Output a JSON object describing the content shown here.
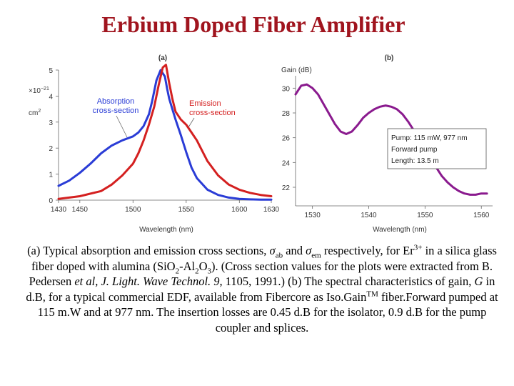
{
  "slide": {
    "title": "Erbium Doped Fiber Amplifier"
  },
  "caption": {
    "p1": "(a) Typical absorption and emission cross sections, ",
    "sigma1": "σ",
    "sub_ab": "ab",
    "and": " and ",
    "sigma2": "σ",
    "sub_em": "em",
    "p2": " respectively, for Er",
    "sup_3plus": "3+",
    "p3": " in a silica glass fiber doped with alumina (Si",
    "sub_o2": "O",
    "sub2_a": "2",
    "dash_al": "-Al",
    "sub2_b": "2",
    "o3": "O",
    "sub3": "3",
    "p4": "). (Cross section values for the plots were extracted from B. Pedersen ",
    "etal": "et al, J. Light. Wave Technol. 9",
    "p5": ", 1105, 1991.) (b) The spectral characteristics of gain, ",
    "G": "G",
    "p6": " in d.B, for a typical commercial EDF, available from Fibercore as Iso.Gain",
    "tm": "TM",
    "p7": " fiber.Forward pumped at 115 m.W and at 977 nm. The insertion losses are 0.45 d.B for the isolator, 0.9 d.B for the pump coupler and splices."
  },
  "chart_data": [
    {
      "type": "line",
      "panel_label": "(a)",
      "xlabel": "Wavelength (nm)",
      "ylabel_exponent": "×10",
      "ylabel_exponent_power": "−21",
      "ylabel_unit": "cm",
      "ylabel_unit_power": "2",
      "xlim": [
        1430,
        1630
      ],
      "ylim": [
        0,
        5
      ],
      "x_ticks": [
        "1430",
        "1450",
        "1500",
        "1550",
        "1600",
        "1630"
      ],
      "x_tick_values": [
        1430,
        1450,
        1500,
        1550,
        1600,
        1630
      ],
      "y_ticks": [
        "0",
        "1",
        "2",
        "3",
        "4",
        "5"
      ],
      "y_tick_values": [
        0,
        1,
        2,
        3,
        4,
        5
      ],
      "series": [
        {
          "name": "Absorption cross-section",
          "color": "#2a3cd6",
          "x": [
            1430,
            1440,
            1450,
            1460,
            1470,
            1480,
            1490,
            1500,
            1505,
            1510,
            1515,
            1518,
            1522,
            1526,
            1530,
            1532,
            1534,
            1537,
            1540,
            1545,
            1550,
            1555,
            1560,
            1570,
            1580,
            1590,
            1600,
            1610,
            1620,
            1630
          ],
          "y": [
            0.55,
            0.75,
            1.05,
            1.4,
            1.8,
            2.1,
            2.3,
            2.45,
            2.6,
            2.85,
            3.3,
            3.8,
            4.6,
            5.0,
            4.75,
            4.3,
            3.9,
            3.5,
            3.1,
            2.5,
            1.85,
            1.25,
            0.85,
            0.4,
            0.2,
            0.1,
            0.05,
            0.03,
            0.02,
            0.02
          ]
        },
        {
          "name": "Emission cross-section",
          "color": "#d42020",
          "x": [
            1430,
            1450,
            1470,
            1480,
            1490,
            1500,
            1505,
            1510,
            1515,
            1520,
            1524,
            1528,
            1531,
            1534,
            1537,
            1540,
            1545,
            1550,
            1555,
            1560,
            1565,
            1570,
            1580,
            1590,
            1600,
            1610,
            1620,
            1630
          ],
          "y": [
            0.05,
            0.15,
            0.35,
            0.6,
            0.95,
            1.4,
            1.8,
            2.3,
            2.9,
            3.6,
            4.4,
            5.1,
            5.2,
            4.5,
            3.9,
            3.4,
            3.1,
            2.9,
            2.6,
            2.3,
            1.9,
            1.5,
            0.95,
            0.6,
            0.4,
            0.28,
            0.2,
            0.15
          ]
        }
      ],
      "annotations": [
        {
          "label_line1": "Absorption",
          "label_line2": "cross-section",
          "color": "#2a3cd6"
        },
        {
          "label_line1": "Emission",
          "label_line2": "cross-section",
          "color": "#d42020"
        }
      ]
    },
    {
      "type": "line",
      "panel_label": "(b)",
      "xlabel": "Wavelength (nm)",
      "ylabel": "Gain (dB)",
      "xlim": [
        1527,
        1562
      ],
      "ylim": [
        20.5,
        31
      ],
      "x_ticks": [
        "1530",
        "1540",
        "1550",
        "1560"
      ],
      "x_tick_values": [
        1530,
        1540,
        1550,
        1560
      ],
      "y_ticks": [
        "22",
        "24",
        "26",
        "28",
        "30"
      ],
      "y_tick_values": [
        22,
        24,
        26,
        28,
        30
      ],
      "series": [
        {
          "name": "Gain",
          "color": "#8a1a8e",
          "x": [
            1527,
            1528,
            1529,
            1530,
            1531,
            1532,
            1533,
            1534,
            1535,
            1536,
            1537,
            1538,
            1539,
            1540,
            1541,
            1542,
            1543,
            1544,
            1545,
            1546,
            1547,
            1548,
            1549,
            1550,
            1551,
            1552,
            1553,
            1554,
            1555,
            1556,
            1557,
            1558,
            1559,
            1560,
            1561
          ],
          "y": [
            29.5,
            30.2,
            30.3,
            30.0,
            29.5,
            28.7,
            27.9,
            27.1,
            26.5,
            26.3,
            26.5,
            27.0,
            27.6,
            28.0,
            28.3,
            28.5,
            28.6,
            28.5,
            28.3,
            27.9,
            27.3,
            26.6,
            25.9,
            25.1,
            24.3,
            23.6,
            22.9,
            22.4,
            22.0,
            21.7,
            21.5,
            21.4,
            21.4,
            21.5,
            21.5
          ]
        }
      ],
      "legend_box": {
        "line1": "Pump: 115 mW, 977 nm",
        "line2": "Forward pump",
        "line3": "Length: 13.5 m"
      }
    }
  ]
}
